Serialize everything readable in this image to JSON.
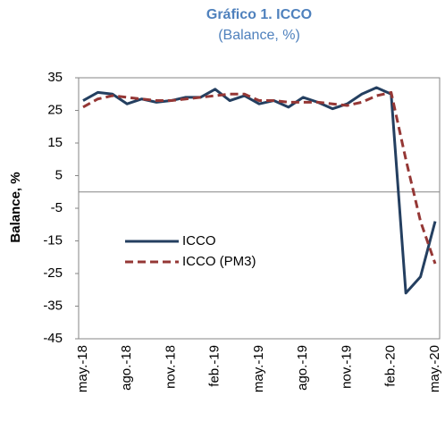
{
  "chart_data": {
    "type": "line",
    "title": "Gráfico 1. ICCO",
    "subtitle": "(Balance, %)",
    "y_label": "Balance, %",
    "categories": [
      "may.-18",
      null,
      null,
      "ago.-18",
      null,
      null,
      "nov.-18",
      null,
      null,
      "feb.-19",
      null,
      null,
      "may.-19",
      null,
      null,
      "ago.-19",
      null,
      null,
      "nov.-19",
      null,
      null,
      "feb.-20",
      null,
      null,
      "may.-20"
    ],
    "series": [
      {
        "name": "ICCO",
        "color": "#243f60",
        "dash": false,
        "values": [
          28,
          30.5,
          30,
          27,
          28.5,
          27.5,
          28,
          29,
          29,
          31.5,
          28,
          29.5,
          27,
          28,
          26,
          29,
          27.5,
          25.5,
          27,
          30,
          32,
          30,
          -31,
          -26,
          -9
        ]
      },
      {
        "name": "ICCO (PM3)",
        "color": "#953735",
        "dash": true,
        "values": [
          26,
          28.5,
          29.5,
          29,
          28.5,
          28,
          28,
          28.5,
          29,
          29.5,
          30,
          30,
          28,
          28,
          27.5,
          27.5,
          27.5,
          27,
          26.5,
          27.5,
          29.5,
          30.5,
          10,
          -9,
          -22
        ]
      }
    ],
    "ylim": [
      -45,
      35
    ],
    "yticks": [
      -45,
      -35,
      -25,
      -15,
      -5,
      5,
      15,
      25,
      35
    ],
    "grid": false,
    "zero_line": true,
    "legend": "left"
  }
}
